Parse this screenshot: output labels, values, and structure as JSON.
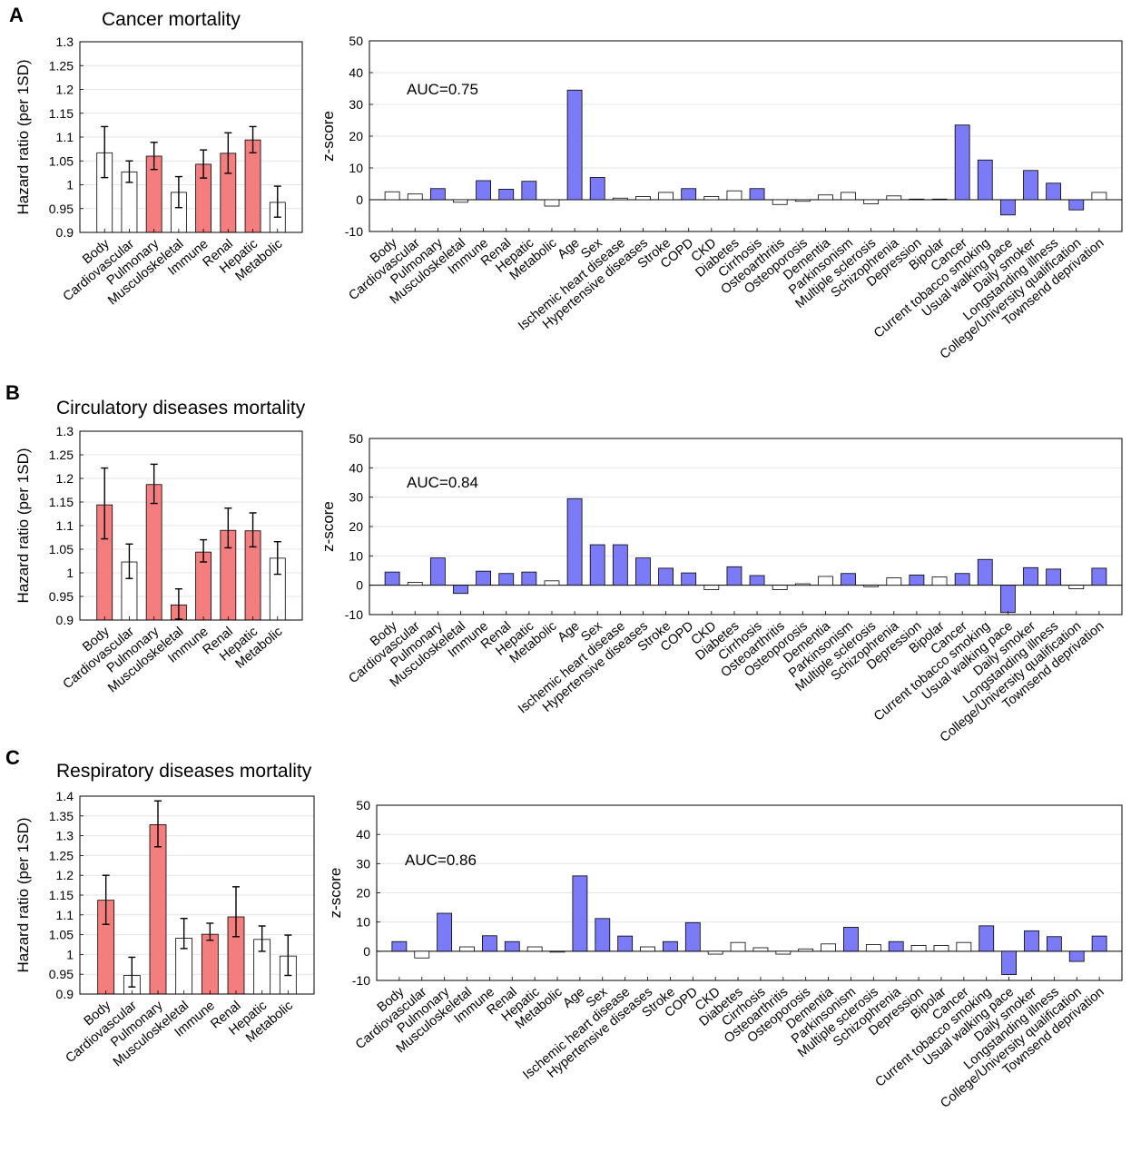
{
  "colors": {
    "hr_sig": "#f47d7d",
    "hr_ns": "#ffffff",
    "z_sig": "#7b7bf7",
    "z_ns": "#ffffff",
    "edge": "#000000",
    "grid": "#e4e4e4"
  },
  "chart_data": [
    {
      "panel": "A",
      "type": "bar",
      "title": "Cancer mortality",
      "ylabel": "Hazard ratio (per 1SD)",
      "ylim": [
        0.9,
        1.3
      ],
      "yticks": [
        "0.9",
        "0.95",
        "1",
        "1.05",
        "1.1",
        "1.15",
        "1.2",
        "1.25",
        "1.3"
      ],
      "categories": [
        "Body",
        "Cardiovascular",
        "Pulmonary",
        "Musculoskeletal",
        "Immune",
        "Renal",
        "Hepatic",
        "Metabolic"
      ],
      "values": [
        1.067,
        1.027,
        1.06,
        0.984,
        1.043,
        1.066,
        1.094,
        0.963
      ],
      "ci_low": [
        1.015,
        1.005,
        1.032,
        0.952,
        1.014,
        1.024,
        1.067,
        0.932
      ],
      "ci_high": [
        1.122,
        1.05,
        1.089,
        1.017,
        1.073,
        1.109,
        1.122,
        0.997
      ],
      "significant": [
        false,
        false,
        true,
        false,
        true,
        true,
        true,
        false
      ]
    },
    {
      "panel": "A",
      "type": "bar",
      "annotation": "AUC=0.75",
      "ylabel": "z-score",
      "ylim": [
        -10,
        50
      ],
      "yticks": [
        "-10",
        "0",
        "10",
        "20",
        "30",
        "40",
        "50"
      ],
      "categories": [
        "Body",
        "Cardiovascular",
        "Pulmonary",
        "Musculoskeletal",
        "Immune",
        "Renal",
        "Hepatic",
        "Metabolic",
        "Age",
        "Sex",
        "Ischemic heart disease",
        "Hypertensive diseases",
        "Stroke",
        "COPD",
        "CKD",
        "Diabetes",
        "Cirrhosis",
        "Osteoarthritis",
        "Osteoporosis",
        "Dementia",
        "Parkinsonism",
        "Multiple sclerosis",
        "Schizophrenia",
        "Depression",
        "Bipolar",
        "Cancer",
        "Current tobacco smoking",
        "Usual walking pace",
        "Daily smoker",
        "Longstanding illness",
        "College/University qualification",
        "Townsend deprivation"
      ],
      "values": [
        2.5,
        1.8,
        3.5,
        -0.8,
        6.0,
        3.3,
        5.8,
        -2.0,
        34.5,
        7.0,
        0.5,
        1.0,
        2.3,
        3.5,
        1.0,
        2.8,
        3.5,
        -1.5,
        -0.5,
        1.5,
        2.3,
        -1.3,
        1.2,
        0.2,
        0.2,
        23.5,
        12.5,
        -4.8,
        9.2,
        5.2,
        -3.2,
        2.3
      ],
      "significant": [
        false,
        false,
        true,
        false,
        true,
        true,
        true,
        false,
        true,
        true,
        false,
        false,
        false,
        true,
        false,
        false,
        true,
        false,
        false,
        false,
        false,
        false,
        false,
        false,
        false,
        true,
        true,
        true,
        true,
        true,
        true,
        false
      ]
    },
    {
      "panel": "B",
      "type": "bar",
      "title": "Circulatory diseases mortality",
      "ylabel": "Hazard ratio (per 1SD)",
      "ylim": [
        0.9,
        1.3
      ],
      "yticks": [
        "0.9",
        "0.95",
        "1",
        "1.05",
        "1.1",
        "1.15",
        "1.2",
        "1.25",
        "1.3"
      ],
      "categories": [
        "Body",
        "Cardiovascular",
        "Pulmonary",
        "Musculoskeletal",
        "Immune",
        "Renal",
        "Hepatic",
        "Metabolic"
      ],
      "values": [
        1.144,
        1.023,
        1.187,
        0.932,
        1.044,
        1.09,
        1.089,
        1.031
      ],
      "ci_low": [
        1.072,
        0.988,
        1.147,
        0.902,
        1.023,
        1.053,
        1.055,
        0.997
      ],
      "ci_high": [
        1.222,
        1.061,
        1.23,
        0.966,
        1.07,
        1.137,
        1.127,
        1.066
      ],
      "significant": [
        true,
        false,
        true,
        true,
        true,
        true,
        true,
        false
      ]
    },
    {
      "panel": "B",
      "type": "bar",
      "annotation": "AUC=0.84",
      "ylabel": "z-score",
      "ylim": [
        -10,
        50
      ],
      "yticks": [
        "-10",
        "0",
        "10",
        "20",
        "30",
        "40",
        "50"
      ],
      "categories": [
        "Body",
        "Cardiovascular",
        "Pulmonary",
        "Musculoskeletal",
        "Immune",
        "Renal",
        "Hepatic",
        "Metabolic",
        "Age",
        "Sex",
        "Ischemic heart disease",
        "Hypertensive diseases",
        "Stroke",
        "COPD",
        "CKD",
        "Diabetes",
        "Cirrhosis",
        "Osteoarthritis",
        "Osteoporosis",
        "Dementia",
        "Parkinsonism",
        "Multiple sclerosis",
        "Schizophrenia",
        "Depression",
        "Bipolar",
        "Cancer",
        "Current tobacco smoking",
        "Usual walking pace",
        "Daily smoker",
        "Longstanding illness",
        "College/University qualification",
        "Townsend deprivation"
      ],
      "values": [
        4.5,
        1.0,
        9.3,
        -2.8,
        4.8,
        4.0,
        4.5,
        1.5,
        29.5,
        13.8,
        13.8,
        9.3,
        5.8,
        4.2,
        -1.5,
        6.3,
        3.3,
        -1.5,
        0.5,
        3.0,
        4.0,
        -0.5,
        2.5,
        3.5,
        2.8,
        4.0,
        8.8,
        -9.3,
        6.0,
        5.5,
        -1.2,
        5.8
      ],
      "significant": [
        true,
        false,
        true,
        true,
        true,
        true,
        true,
        false,
        true,
        true,
        true,
        true,
        true,
        true,
        false,
        true,
        true,
        false,
        false,
        false,
        true,
        false,
        false,
        true,
        false,
        true,
        true,
        true,
        true,
        true,
        false,
        true
      ]
    },
    {
      "panel": "C",
      "type": "bar",
      "title": "Respiratory diseases mortality",
      "ylabel": "Hazard ratio (per 1SD)",
      "ylim": [
        0.9,
        1.4
      ],
      "yticks": [
        "0.9",
        "0.95",
        "1",
        "1.05",
        "1.1",
        "1.15",
        "1.2",
        "1.25",
        "1.3",
        "1.35",
        "1.4"
      ],
      "categories": [
        "Body",
        "Cardiovascular",
        "Pulmonary",
        "Musculoskeletal",
        "Immune",
        "Renal",
        "Hepatic",
        "Metabolic"
      ],
      "values": [
        1.137,
        0.947,
        1.328,
        1.041,
        1.051,
        1.095,
        1.038,
        0.996
      ],
      "ci_low": [
        1.076,
        0.918,
        1.272,
        1.015,
        1.036,
        1.045,
        1.008,
        0.947
      ],
      "ci_high": [
        1.2,
        0.993,
        1.388,
        1.091,
        1.079,
        1.171,
        1.072,
        1.049
      ],
      "significant": [
        true,
        false,
        true,
        false,
        true,
        true,
        false,
        false
      ]
    },
    {
      "panel": "C",
      "type": "bar",
      "annotation": "AUC=0.86",
      "ylabel": "z-score",
      "ylim": [
        -10,
        50
      ],
      "yticks": [
        "-10",
        "0",
        "10",
        "20",
        "30",
        "40",
        "50"
      ],
      "categories": [
        "Body",
        "Cardiovascular",
        "Pulmonary",
        "Musculoskeletal",
        "Immune",
        "Renal",
        "Hepatic",
        "Metabolic",
        "Age",
        "Sex",
        "Ischemic heart disease",
        "Hypertensive diseases",
        "Stroke",
        "COPD",
        "CKD",
        "Diabetes",
        "Cirrhosis",
        "Osteoarthritis",
        "Osteoporosis",
        "Dementia",
        "Parkinsonism",
        "Multiple sclerosis",
        "Schizophrenia",
        "Depression",
        "Bipolar",
        "Cancer",
        "Current tobacco smoking",
        "Usual walking pace",
        "Daily smoker",
        "Longstanding illness",
        "College/University qualification",
        "Townsend deprivation"
      ],
      "values": [
        3.3,
        -2.3,
        13.0,
        1.5,
        5.3,
        3.3,
        1.5,
        -0.3,
        25.8,
        11.2,
        5.2,
        1.5,
        3.3,
        9.8,
        -1.0,
        3.0,
        1.2,
        -1.0,
        0.8,
        2.5,
        8.2,
        2.3,
        3.3,
        2.0,
        2.0,
        3.0,
        8.7,
        -8.0,
        7.0,
        5.0,
        -3.5,
        5.2
      ],
      "significant": [
        true,
        false,
        true,
        false,
        true,
        true,
        false,
        false,
        true,
        true,
        true,
        false,
        true,
        true,
        false,
        false,
        false,
        false,
        false,
        false,
        true,
        false,
        true,
        false,
        false,
        false,
        true,
        true,
        true,
        true,
        true,
        true
      ]
    }
  ]
}
